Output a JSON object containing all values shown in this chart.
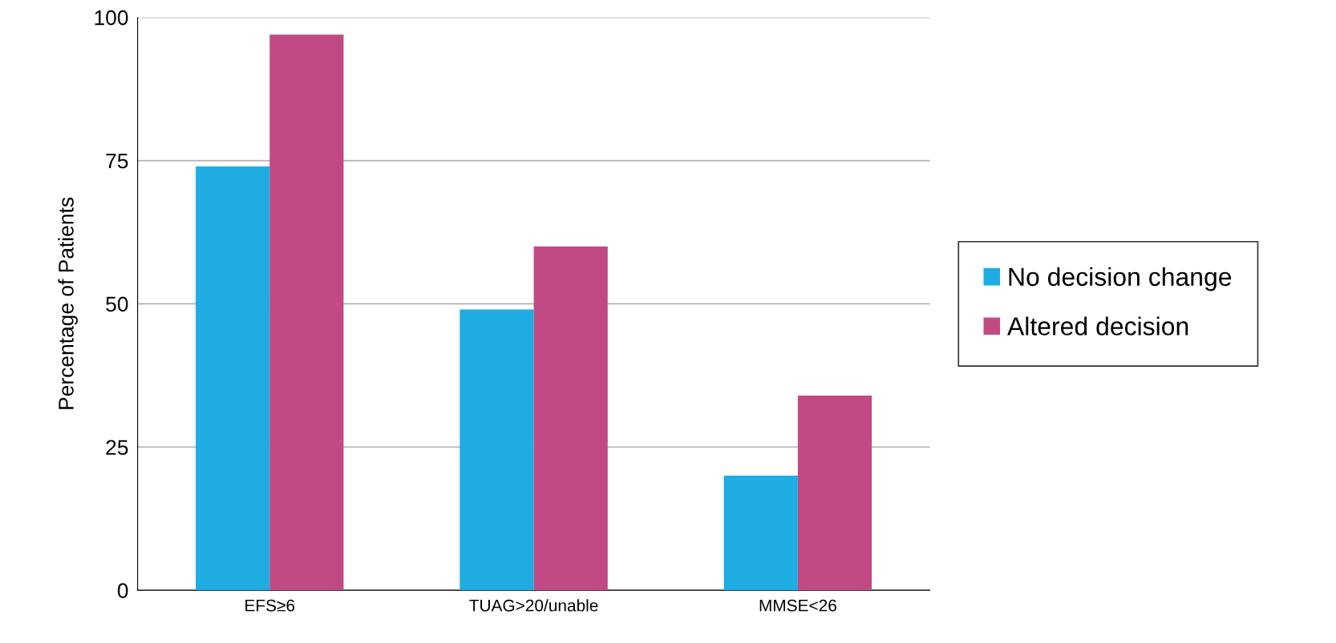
{
  "chart_data": {
    "type": "bar",
    "ylabel": "Percentage of Patients",
    "categories": [
      "EFS≥6",
      "TUAG>20/unable",
      "MMSE<26"
    ],
    "series": [
      {
        "name": "No decision change",
        "color": "#1eace3",
        "values": [
          74,
          49,
          20
        ]
      },
      {
        "name": "Altered decision",
        "color": "#c14a85",
        "values": [
          97,
          60,
          34
        ]
      }
    ],
    "ylim": [
      0,
      100
    ],
    "yticks": [
      0,
      25,
      50,
      75,
      100
    ],
    "grid": "y",
    "legend": "right"
  }
}
